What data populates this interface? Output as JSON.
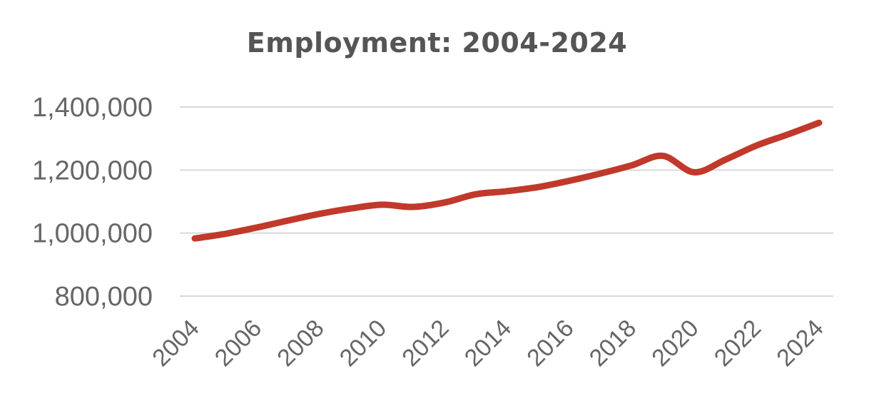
{
  "chart_data": {
    "type": "line",
    "title": "Employment: 2004-2024",
    "xlabel": "",
    "ylabel": "",
    "ylim": [
      800000,
      1400000
    ],
    "yticks": [
      {
        "value": 800000,
        "label": "800,000"
      },
      {
        "value": 1000000,
        "label": "1,000,000"
      },
      {
        "value": 1200000,
        "label": "1,200,000"
      },
      {
        "value": 1400000,
        "label": "1,400,000"
      }
    ],
    "xticks": [
      "2004",
      "2006",
      "2008",
      "2010",
      "2012",
      "2014",
      "2016",
      "2018",
      "2020",
      "2022",
      "2024"
    ],
    "grid": true,
    "legend": "none",
    "series": [
      {
        "color": "#c0392b",
        "x": [
          2004,
          2005,
          2006,
          2007,
          2008,
          2009,
          2010,
          2011,
          2012,
          2013,
          2014,
          2015,
          2016,
          2017,
          2018,
          2019,
          2020,
          2021,
          2022,
          2023,
          2024
        ],
        "values": [
          983000,
          998000,
          1018000,
          1040000,
          1061000,
          1078000,
          1090000,
          1083000,
          1097000,
          1123000,
          1133000,
          1146000,
          1166000,
          1189000,
          1215000,
          1245000,
          1193000,
          1233000,
          1278000,
          1313000,
          1350000
        ]
      }
    ]
  }
}
